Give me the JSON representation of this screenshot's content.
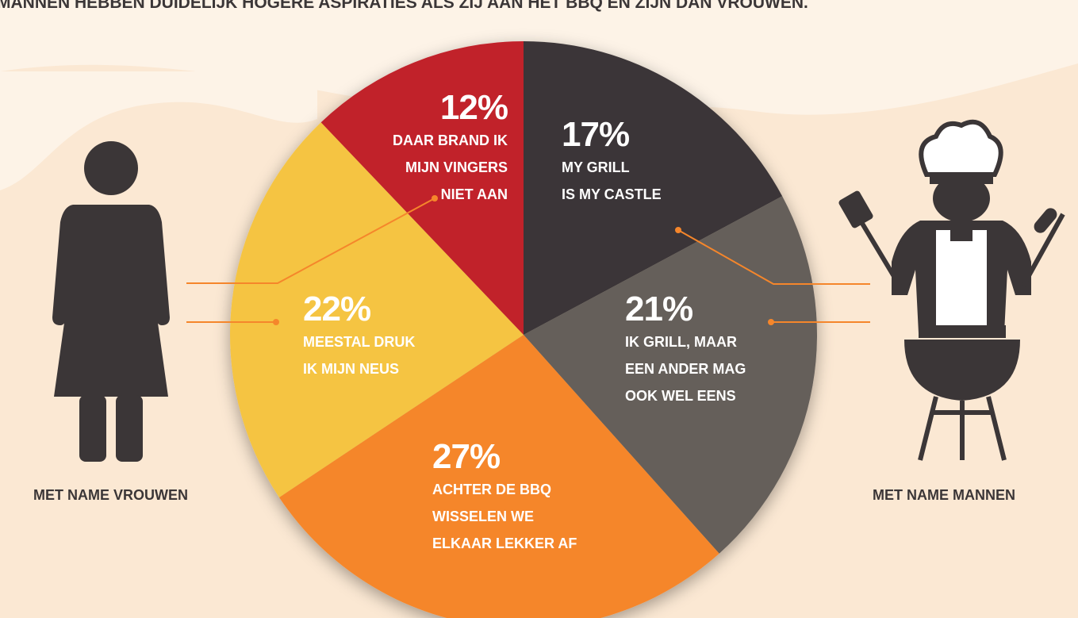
{
  "chart_data": {
    "type": "pie",
    "title": "MANNEN HEBBEN DUIDELIJK HOGERE ASPIRATIES ALS ZIJ AAN HET BBQ EN ZIJN DAN VROUWEN.",
    "categories": [
      "MY GRILL\nIS MY CASTLE",
      "IK GRILL, MAAR\nEEN ANDER MAG\nOOK WEL EENS",
      "ACHTER DE BBQ\nWISSELEN WE\nELKAAR LEKKER AF",
      "MEESTAL DRUK\nIK MIJN NEUS",
      "DAAR BRAND IK\nMIJN VINGERS\nNIET AAN"
    ],
    "values": [
      17,
      21,
      27,
      22,
      12
    ],
    "value_labels": [
      "17%",
      "21%",
      "27%",
      "22%",
      "12%"
    ],
    "colors": [
      "#3b3637",
      "#655f5a",
      "#f5862b",
      "#f5c443",
      "#c1202b"
    ],
    "annotations": [
      "MET NAME VROUWEN",
      "MET NAME MANNEN"
    ]
  }
}
